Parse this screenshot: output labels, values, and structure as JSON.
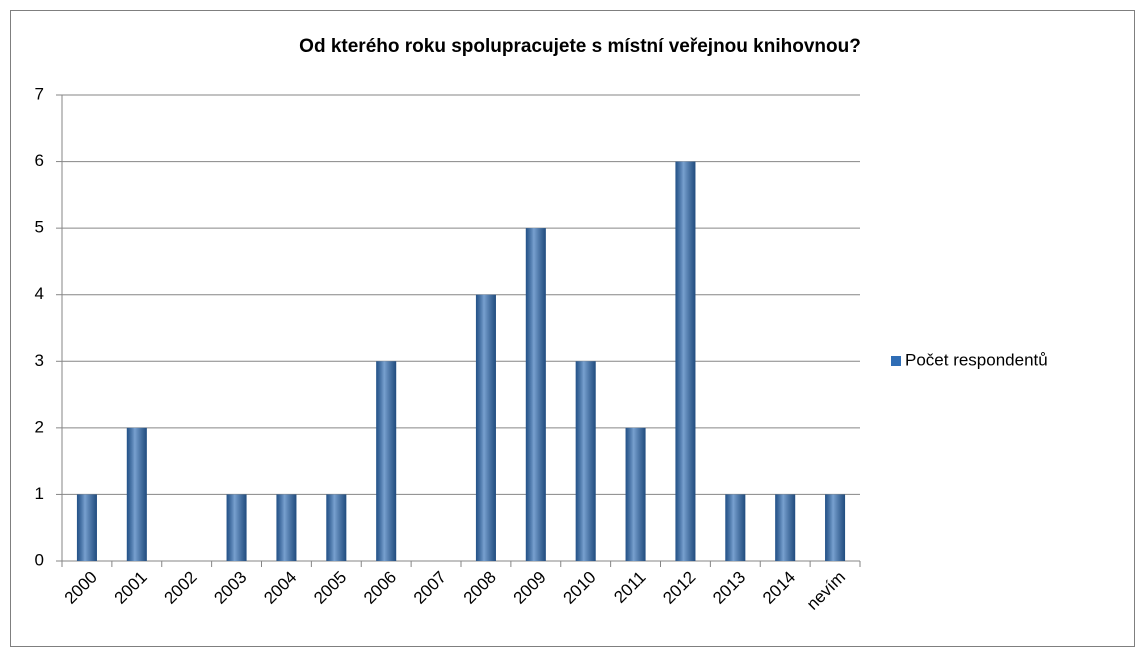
{
  "chart_data": {
    "type": "bar",
    "title": "Od kterého roku spolupracujete s místní veřejnou knihovnou?",
    "categories": [
      "2000",
      "2001",
      "2002",
      "2003",
      "2004",
      "2005",
      "2006",
      "2007",
      "2008",
      "2009",
      "2010",
      "2011",
      "2012",
      "2013",
      "2014",
      "nevím"
    ],
    "series": [
      {
        "name": "Počet respondentů",
        "color": "#2f6db5",
        "values": [
          1,
          2,
          0,
          1,
          1,
          1,
          3,
          0,
          4,
          5,
          3,
          2,
          6,
          1,
          1,
          1
        ]
      }
    ],
    "ylim": [
      0,
      7
    ],
    "yticks": [
      0,
      1,
      2,
      3,
      4,
      5,
      6,
      7
    ],
    "grid": true,
    "legend": "right"
  }
}
